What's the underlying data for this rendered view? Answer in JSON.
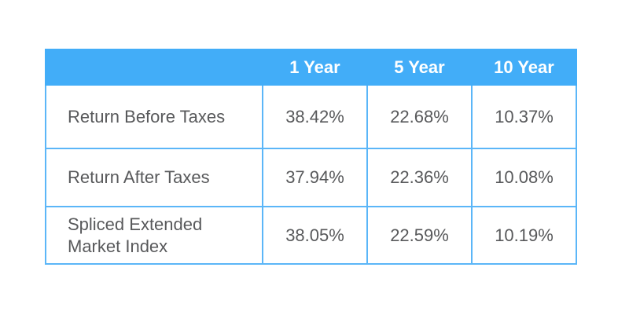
{
  "colors": {
    "header_bg": "#42adf8",
    "border": "#5bb6f8",
    "body_text": "#58595b",
    "header_text": "#ffffff",
    "page_bg": "#ffffff"
  },
  "table": {
    "header": [
      "",
      "1 Year",
      "5 Year",
      "10 Year"
    ],
    "rows": [
      {
        "label": "Return Before Taxes",
        "values": [
          "38.42%",
          "22.68%",
          "10.37%"
        ]
      },
      {
        "label": "Return After Taxes",
        "values": [
          "37.94%",
          "22.36%",
          "10.08%"
        ]
      },
      {
        "label": "Spliced Extended\nMarket Index",
        "values": [
          "38.05%",
          "22.59%",
          "10.19%"
        ]
      }
    ]
  },
  "chart_data": {
    "type": "table",
    "title": "",
    "columns": [
      "1 Year",
      "5 Year",
      "10 Year"
    ],
    "row_labels": [
      "Return Before Taxes",
      "Return After Taxes",
      "Spliced Extended Market Index"
    ],
    "series": [
      {
        "name": "Return Before Taxes",
        "values": [
          38.42,
          22.68,
          10.37
        ]
      },
      {
        "name": "Return After Taxes",
        "values": [
          37.94,
          22.36,
          10.08
        ]
      },
      {
        "name": "Spliced Extended Market Index",
        "values": [
          38.05,
          22.59,
          10.19
        ]
      }
    ],
    "unit": "%"
  }
}
